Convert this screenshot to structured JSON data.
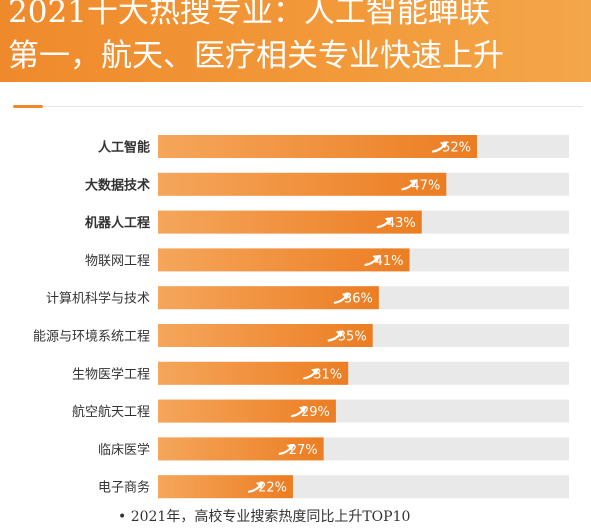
{
  "header": {
    "title_line1": "2021十大热搜专业：人工智能蝉联",
    "title_line2": "第一，航天、医疗相关专业快速上升"
  },
  "colors": {
    "banner": "#ef8a2c",
    "bar_start": "#f5a65b",
    "bar_end": "#ec7d22",
    "track": "#e9e9e9",
    "label": "#333333"
  },
  "chart_data": {
    "type": "bar",
    "orientation": "horizontal",
    "categories": [
      "人工智能",
      "大数据技术",
      "机器人工程",
      "物联网工程",
      "计算机科学与技术",
      "能源与环境系统工程",
      "生物医学工程",
      "航空航天工程",
      "临床医学",
      "电子商务"
    ],
    "values": [
      52,
      47,
      43,
      41,
      36,
      35,
      31,
      29,
      27,
      22
    ],
    "value_labels": [
      "52%",
      "47%",
      "43%",
      "41%",
      "36%",
      "35%",
      "31%",
      "29%",
      "27%",
      "22%"
    ],
    "bold_categories": [
      "人工智能",
      "大数据技术",
      "机器人工程"
    ],
    "xlim": [
      0,
      67
    ],
    "grid": false,
    "legend": "none"
  },
  "footer": {
    "caption": "• 2021年，高校专业搜索热度同比上升TOP10"
  }
}
